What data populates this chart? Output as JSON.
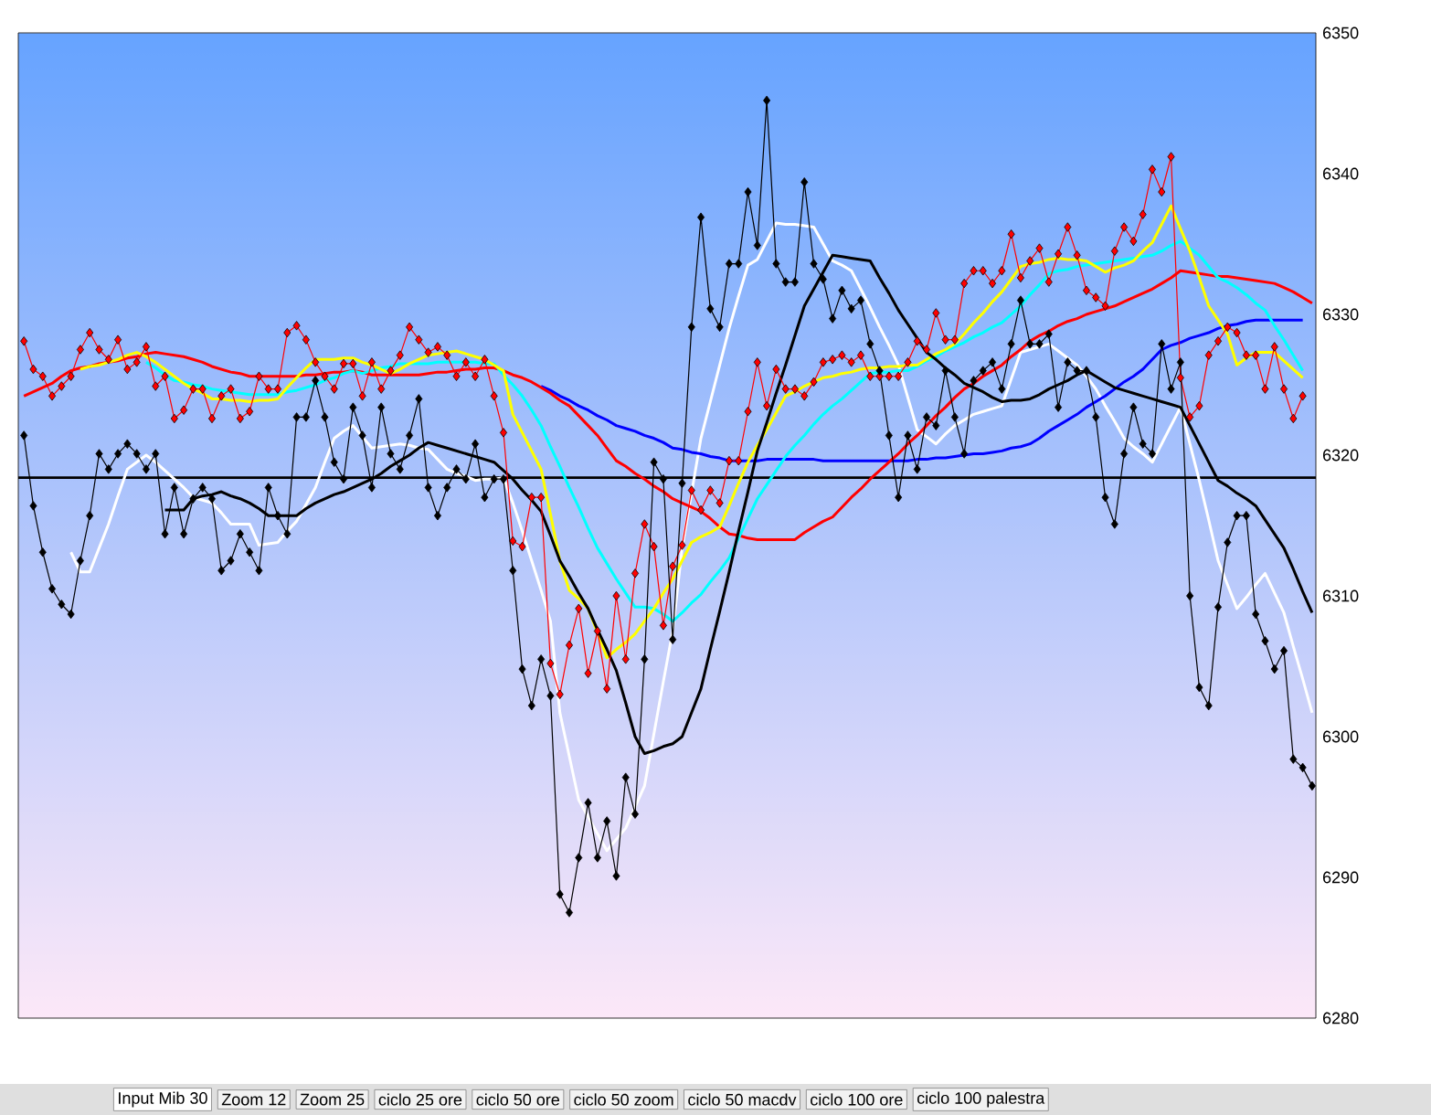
{
  "chart_data": {
    "type": "line",
    "ylim": [
      6280,
      6350
    ],
    "yticks": [
      6280,
      6290,
      6300,
      6310,
      6320,
      6330,
      6340,
      6350
    ],
    "tick_labels": "y",
    "categories": [
      null,
      null,
      null,
      null,
      null,
      null,
      null,
      null,
      null,
      null,
      null,
      null,
      null,
      null,
      null,
      null,
      null,
      null,
      null,
      null,
      null,
      null,
      null,
      null,
      null,
      null,
      null,
      null,
      null,
      null,
      null,
      null,
      null,
      null,
      null,
      null,
      null,
      null,
      null,
      null,
      null,
      null,
      null,
      null,
      null,
      null,
      null,
      null,
      null,
      null,
      null,
      null,
      null,
      null,
      null,
      null,
      null,
      null,
      null,
      null,
      null,
      null,
      null,
      null,
      null,
      null,
      null,
      null,
      null,
      null,
      null,
      null,
      null,
      null,
      null,
      null,
      null,
      null,
      null,
      null,
      null,
      null,
      null,
      null,
      null,
      null,
      null,
      null,
      null,
      null,
      null,
      null,
      null,
      null,
      null,
      null,
      null,
      null,
      null,
      null,
      null,
      null,
      null,
      null,
      null,
      null,
      null,
      null,
      null,
      null,
      null,
      null,
      null,
      null,
      null,
      null,
      null,
      null,
      null,
      null,
      null,
      null,
      null,
      null,
      null,
      null,
      null,
      null,
      null,
      null,
      null,
      null,
      null,
      null,
      null,
      null,
      null,
      null
    ],
    "ref_lines": [
      {
        "axis": "y",
        "value": 6318.4,
        "color": "#000000"
      }
    ],
    "annotations": [
      "Input Mib 30",
      "Zoom 12",
      "Zoom 25",
      "ciclo 25 ore",
      "ciclo 50 ore",
      "ciclo 50 zoom",
      "ciclo 50 macdv",
      "ciclo 100 ore",
      "ciclo 100 palestra"
    ],
    "series": [
      {
        "color": "#ffffff",
        "values": [
          null,
          null,
          null,
          null,
          null,
          6313.1,
          6311.7,
          6311.7,
          6313.4,
          6315.1,
          6317.1,
          6319.0,
          6319.5,
          6320.0,
          6319.5,
          6318.9,
          6318.3,
          6317.7,
          6317.0,
          6316.8,
          6316.6,
          6315.9,
          6315.1,
          6315.1,
          6315.1,
          6313.6,
          6313.7,
          6313.8,
          6314.6,
          6315.3,
          6316.5,
          6317.7,
          6319.5,
          6321.2,
          6321.7,
          6322.1,
          6321.3,
          6320.5,
          6320.6,
          6320.7,
          6320.8,
          6320.7,
          6320.5,
          6320.4,
          6319.7,
          6319.0,
          6318.7,
          6318.5,
          6318.2,
          6318.3,
          6318.3,
          6318.4,
          6316.6,
          6314.6,
          6312.5,
          6310.4,
          6308.2,
          6301.7,
          6298.6,
          6295.5,
          6294.3,
          6293.1,
          6291.9,
          6292.7,
          6293.5,
          6295.0,
          6296.5,
          6300.2,
          6303.9,
          6307.5,
          6313.4,
          6317.3,
          6321.2,
          6323.8,
          6326.4,
          6329.0,
          6331.3,
          6333.5,
          6333.9,
          6335.2,
          6336.5,
          6336.4,
          6336.4,
          6336.3,
          6336.2,
          6335.0,
          6333.8,
          6333.5,
          6333.1,
          6331.8,
          6330.5,
          6329.1,
          6327.8,
          6326.4,
          6324.1,
          6321.8,
          6321.3,
          6320.8,
          6321.5,
          6322.1,
          6322.5,
          6322.9,
          6323.1,
          6323.3,
          6323.5,
          6325.4,
          6327.3,
          6327.5,
          6327.7,
          6327.9,
          6327.4,
          6326.9,
          6326.4,
          6325.6,
          6324.7,
          6323.5,
          6322.4,
          6321.2,
          6320.6,
          6320.1,
          6319.5,
          6320.8,
          6322.1,
          6323.4,
          6320.8,
          6318.2,
          6315.4,
          6312.5,
          6310.8,
          6309.1,
          6309.9,
          6310.8,
          6311.6,
          6310.2,
          6308.8,
          6306.4,
          6304.1,
          6301.7
        ]
      },
      {
        "color": "#0000ff",
        "values": [
          null,
          null,
          null,
          null,
          null,
          null,
          null,
          null,
          null,
          null,
          null,
          null,
          null,
          null,
          null,
          null,
          null,
          null,
          null,
          null,
          null,
          null,
          null,
          null,
          null,
          null,
          null,
          null,
          null,
          null,
          null,
          null,
          null,
          null,
          null,
          null,
          null,
          null,
          null,
          null,
          null,
          null,
          null,
          null,
          null,
          null,
          null,
          null,
          null,
          null,
          null,
          null,
          null,
          null,
          null,
          6324.9,
          6324.6,
          6324.2,
          6323.9,
          6323.5,
          6323.2,
          6322.8,
          6322.5,
          6322.1,
          6321.9,
          6321.7,
          6321.4,
          6321.2,
          6320.9,
          6320.5,
          6320.4,
          6320.2,
          6320.1,
          6319.9,
          6319.8,
          6319.6,
          6319.6,
          6319.6,
          6319.6,
          6319.7,
          6319.7,
          6319.7,
          6319.7,
          6319.7,
          6319.7,
          6319.6,
          6319.6,
          6319.6,
          6319.6,
          6319.6,
          6319.6,
          6319.6,
          6319.6,
          6319.6,
          6319.6,
          6319.7,
          6319.7,
          6319.8,
          6319.8,
          6319.9,
          6320.0,
          6320.1,
          6320.1,
          6320.2,
          6320.3,
          6320.5,
          6320.6,
          6320.8,
          6321.2,
          6321.7,
          6322.1,
          6322.5,
          6322.9,
          6323.4,
          6323.8,
          6324.2,
          6324.7,
          6325.2,
          6325.6,
          6326.1,
          6326.8,
          6327.5,
          6327.8,
          6328.0,
          6328.3,
          6328.5,
          6328.7,
          6329.0,
          6329.2,
          6329.3,
          6329.5,
          6329.6,
          6329.6,
          6329.6,
          6329.6,
          6329.6,
          6329.6,
          null
        ]
      },
      {
        "color": "#ff0000",
        "values": [
          6324.2,
          6324.5,
          6324.8,
          6325.1,
          6325.6,
          6326.0,
          6326.2,
          6326.3,
          6326.5,
          6326.6,
          6326.7,
          6326.9,
          6327.0,
          6327.2,
          6327.3,
          6327.2,
          6327.1,
          6327.0,
          6326.8,
          6326.6,
          6326.3,
          6326.1,
          6325.9,
          6325.8,
          6325.6,
          6325.6,
          6325.6,
          6325.6,
          6325.6,
          6325.6,
          6325.7,
          6325.7,
          6325.8,
          6325.9,
          6325.9,
          6326.0,
          6325.9,
          6325.7,
          6325.7,
          6325.7,
          6325.7,
          6325.7,
          6325.7,
          6325.8,
          6325.9,
          6325.9,
          6326.0,
          6326.1,
          6326.1,
          6326.2,
          6326.2,
          6326.0,
          6325.7,
          6325.5,
          6325.2,
          6324.8,
          6324.4,
          6323.9,
          6323.5,
          6322.8,
          6322.1,
          6321.4,
          6320.5,
          6319.6,
          6319.2,
          6318.7,
          6318.3,
          6317.8,
          6317.4,
          6316.9,
          6316.6,
          6316.3,
          6316.0,
          6315.5,
          6314.9,
          6314.4,
          6314.3,
          6314.1,
          6314.0,
          6314.0,
          6314.0,
          6314.0,
          6314.0,
          6314.5,
          6314.9,
          6315.3,
          6315.6,
          6316.3,
          6317.0,
          6317.6,
          6318.3,
          6318.9,
          6319.5,
          6320.1,
          6320.8,
          6321.4,
          6322.1,
          6322.8,
          6323.4,
          6324.1,
          6324.7,
          6325.1,
          6325.6,
          6326.0,
          6326.4,
          6327.0,
          6327.5,
          6328.1,
          6328.5,
          6328.8,
          6329.2,
          6329.5,
          6329.7,
          6330.0,
          6330.2,
          6330.4,
          6330.6,
          6330.9,
          6331.2,
          6331.5,
          6331.8,
          6332.2,
          6332.6,
          6333.1,
          6333.0,
          6332.9,
          6332.8,
          6332.7,
          6332.7,
          6332.6,
          6332.5,
          6332.4,
          6332.3,
          6332.2,
          6331.9,
          6331.6,
          6331.2,
          6330.8
        ]
      },
      {
        "color": "#00ffff",
        "values": [
          null,
          null,
          null,
          null,
          null,
          null,
          null,
          null,
          null,
          null,
          null,
          null,
          null,
          6326.6,
          6326.2,
          6325.7,
          6325.3,
          6325.2,
          6325.0,
          6324.9,
          6324.7,
          6324.6,
          6324.5,
          6324.4,
          6324.3,
          6324.3,
          6324.3,
          6324.3,
          6324.5,
          6324.6,
          6324.8,
          6325.0,
          6325.3,
          6325.5,
          6325.8,
          6326.0,
          6325.8,
          6326.0,
          6326.2,
          6326.3,
          6326.5,
          6326.5,
          6326.5,
          6326.5,
          6326.6,
          6326.6,
          6326.6,
          6326.6,
          6326.6,
          6326.5,
          6326.5,
          6325.7,
          6325.0,
          6324.2,
          6323.2,
          6322.1,
          6320.6,
          6319.2,
          6317.7,
          6316.3,
          6314.8,
          6313.4,
          6312.3,
          6311.2,
          6310.2,
          6309.2,
          6309.2,
          6309.1,
          6308.7,
          6308.2,
          6308.8,
          6309.5,
          6310.1,
          6311.0,
          6311.8,
          6312.7,
          6314.1,
          6315.5,
          6316.9,
          6317.9,
          6318.9,
          6319.9,
          6320.7,
          6321.4,
          6322.2,
          6322.9,
          6323.5,
          6324.0,
          6324.6,
          6325.2,
          6325.8,
          6325.9,
          6325.9,
          6326.0,
          6326.0,
          6326.3,
          6326.7,
          6327.0,
          6327.4,
          6327.7,
          6328.0,
          6328.4,
          6328.7,
          6329.1,
          6329.4,
          6330.0,
          6330.6,
          6331.4,
          6332.1,
          6332.9,
          6333.1,
          6333.2,
          6333.4,
          6333.5,
          6333.6,
          6333.7,
          6333.8,
          6333.9,
          6334.0,
          6334.1,
          6334.2,
          6334.5,
          6334.9,
          6335.2,
          6334.7,
          6334.2,
          6333.4,
          6332.6,
          6332.3,
          6331.9,
          6331.4,
          6330.8,
          6330.3,
          6329.2,
          6328.2,
          6327.1,
          6326.0,
          null
        ]
      },
      {
        "color": "#ffff00",
        "values": [
          null,
          null,
          null,
          null,
          null,
          null,
          6326.1,
          6326.3,
          6326.4,
          6326.6,
          6326.8,
          6327.1,
          6327.3,
          6327.0,
          6326.6,
          6326.1,
          6325.6,
          6325.1,
          6324.7,
          6324.4,
          6324.0,
          6324.0,
          6323.9,
          6323.9,
          6323.8,
          6323.9,
          6323.9,
          6324.0,
          6324.8,
          6325.5,
          6326.2,
          6326.8,
          6326.8,
          6326.8,
          6326.9,
          6326.9,
          6326.6,
          6326.4,
          6326.1,
          6325.8,
          6326.1,
          6326.5,
          6326.8,
          6327.1,
          6327.2,
          6327.3,
          6327.4,
          6327.2,
          6327.0,
          6326.8,
          6326.4,
          6326.0,
          6322.9,
          6321.6,
          6320.3,
          6319.0,
          6315.8,
          6312.5,
          6310.4,
          6309.8,
          6309.1,
          6307.4,
          6305.6,
          6306.2,
          6306.7,
          6307.3,
          6308.2,
          6309.1,
          6310.2,
          6311.2,
          6312.5,
          6313.8,
          6314.2,
          6314.5,
          6314.9,
          6316.4,
          6318.0,
          6319.5,
          6320.7,
          6321.8,
          6323.0,
          6324.2,
          6324.5,
          6324.9,
          6325.2,
          6325.5,
          6325.6,
          6325.8,
          6325.9,
          6326.1,
          6326.2,
          6326.2,
          6326.3,
          6326.3,
          6326.4,
          6326.4,
          6326.8,
          6327.2,
          6327.5,
          6327.9,
          6328.6,
          6329.4,
          6330.1,
          6330.9,
          6331.6,
          6332.5,
          6333.4,
          6333.6,
          6333.7,
          6333.9,
          6334.0,
          6333.9,
          6333.9,
          6333.8,
          6333.4,
          6333.0,
          6333.3,
          6333.5,
          6333.8,
          6334.5,
          6335.1,
          6336.4,
          6337.7,
          6336.1,
          6334.5,
          6332.6,
          6330.6,
          6329.6,
          6328.6,
          6326.4,
          6326.9,
          6327.3,
          6327.3,
          6327.3,
          6326.7,
          6326.1,
          6325.5,
          null
        ]
      },
      {
        "color": "#000000",
        "values": [
          null,
          null,
          null,
          null,
          null,
          null,
          null,
          null,
          null,
          null,
          null,
          null,
          null,
          null,
          null,
          6316.1,
          6316.1,
          6316.1,
          6316.9,
          6317.1,
          6317.2,
          6317.4,
          6317.1,
          6316.9,
          6316.6,
          6316.2,
          6315.7,
          6315.7,
          6315.7,
          6315.7,
          6316.2,
          6316.6,
          6316.9,
          6317.2,
          6317.4,
          6317.7,
          6318.0,
          6318.3,
          6318.7,
          6319.2,
          6319.6,
          6320.0,
          6320.5,
          6320.9,
          6320.7,
          6320.5,
          6320.3,
          6320.1,
          6319.9,
          6319.7,
          6319.5,
          6318.9,
          6318.3,
          6317.5,
          6316.8,
          6316.0,
          6314.3,
          6312.5,
          6311.4,
          6310.2,
          6309.1,
          6307.6,
          6306.2,
          6304.7,
          6302.4,
          6300.0,
          6298.8,
          6299.0,
          6299.3,
          6299.5,
          6300.0,
          6301.7,
          6303.4,
          6306.2,
          6308.9,
          6311.7,
          6314.6,
          6317.4,
          6320.3,
          6322.3,
          6324.4,
          6326.4,
          6328.5,
          6330.6,
          6331.8,
          6333.0,
          6334.2,
          6334.1,
          6334.0,
          6333.9,
          6333.8,
          6332.6,
          6331.5,
          6330.3,
          6329.3,
          6328.3,
          6327.3,
          6326.8,
          6326.2,
          6325.7,
          6325.1,
          6324.8,
          6324.5,
          6324.1,
          6323.8,
          6323.9,
          6323.9,
          6324.0,
          6324.3,
          6324.7,
          6325.0,
          6325.3,
          6325.7,
          6326.0,
          6325.6,
          6325.2,
          6324.8,
          6324.6,
          6324.4,
          6324.2,
          6324.0,
          6323.8,
          6323.6,
          6323.4,
          6322.1,
          6320.8,
          6319.5,
          6318.2,
          6317.8,
          6317.3,
          6316.9,
          6316.4,
          6315.4,
          6314.4,
          6313.4,
          6311.9,
          6310.3,
          6308.8
        ]
      },
      {
        "color": "#ff0000",
        "marker": "diamond",
        "values": [
          6328.1,
          6326.1,
          6325.6,
          6324.2,
          6324.9,
          6325.6,
          6327.5,
          6328.7,
          6327.5,
          6326.8,
          6328.2,
          6326.1,
          6326.6,
          6327.7,
          6324.9,
          6325.6,
          6322.6,
          6323.2,
          6324.7,
          6324.7,
          6322.6,
          6324.2,
          6324.7,
          6322.6,
          6323.1,
          6325.6,
          6324.7,
          6324.7,
          6328.7,
          6329.2,
          6328.2,
          6326.6,
          6325.6,
          6324.7,
          6326.5,
          6326.5,
          6324.2,
          6326.6,
          6324.7,
          6326.0,
          6327.1,
          6329.1,
          6328.2,
          6327.3,
          6327.7,
          6327.1,
          6325.6,
          6326.6,
          6325.6,
          6326.8,
          6324.2,
          6321.6,
          6313.9,
          6313.5,
          6317.0,
          6317.0,
          6305.2,
          6303.0,
          6306.5,
          6309.1,
          6304.5,
          6307.5,
          6303.4,
          6310.0,
          6305.5,
          6311.6,
          6315.1,
          6313.5,
          6307.9,
          6312.1,
          6313.6,
          6317.5,
          6316.1,
          6317.5,
          6316.6,
          6319.6,
          6319.6,
          6323.1,
          6326.6,
          6323.5,
          6326.1,
          6324.7,
          6324.7,
          6324.2,
          6325.2,
          6326.6,
          6326.8,
          6327.1,
          6326.6,
          6327.1,
          6325.6,
          6325.6,
          6325.6,
          6325.6,
          6326.6,
          6328.1,
          6327.5,
          6330.1,
          6328.2,
          6328.2,
          6332.2,
          6333.1,
          6333.1,
          6332.2,
          6333.1,
          6335.7,
          6332.6,
          6333.8,
          6334.7,
          6332.3,
          6334.3,
          6336.2,
          6334.2,
          6331.7,
          6331.2,
          6330.6,
          6334.5,
          6336.2,
          6335.2,
          6337.1,
          6340.3,
          6338.7,
          6341.2,
          6325.5,
          6322.7,
          6323.5,
          6327.1,
          6328.1,
          6329.1,
          6328.7,
          6327.1,
          6327.1,
          6324.7,
          6327.7,
          6324.7,
          6322.6,
          6324.2,
          null
        ]
      },
      {
        "color": "#000000",
        "marker": "diamond",
        "values": [
          6321.4,
          6316.4,
          6313.1,
          6310.5,
          6309.4,
          6308.7,
          6312.5,
          6315.7,
          6320.1,
          6319.0,
          6320.1,
          6320.8,
          6320.1,
          6319.0,
          6320.1,
          6314.4,
          6317.7,
          6314.4,
          6316.9,
          6317.7,
          6316.9,
          6311.8,
          6312.5,
          6314.4,
          6313.1,
          6311.8,
          6317.7,
          6315.7,
          6314.4,
          6322.7,
          6322.7,
          6325.3,
          6322.7,
          6319.5,
          6318.3,
          6323.4,
          6321.4,
          6317.7,
          6323.4,
          6320.1,
          6319.0,
          6321.4,
          6324.0,
          6317.7,
          6315.7,
          6317.7,
          6319.0,
          6318.3,
          6320.8,
          6317.0,
          6318.3,
          6318.3,
          6311.8,
          6304.8,
          6302.2,
          6305.5,
          6302.9,
          6288.8,
          6287.5,
          6291.4,
          6295.3,
          6291.4,
          6294.0,
          6290.1,
          6297.1,
          6294.5,
          6305.5,
          6319.5,
          6318.3,
          6306.9,
          6318.0,
          6329.1,
          6336.9,
          6330.4,
          6329.1,
          6333.6,
          6333.6,
          6338.7,
          6334.9,
          6345.2,
          6333.6,
          6332.3,
          6332.3,
          6339.4,
          6333.6,
          6332.5,
          6329.7,
          6331.7,
          6330.4,
          6331.0,
          6327.9,
          6326.0,
          6321.4,
          6317.0,
          6321.4,
          6319.0,
          6322.7,
          6322.1,
          6326.0,
          6322.7,
          6320.1,
          6325.3,
          6326.0,
          6326.6,
          6324.7,
          6327.9,
          6331.0,
          6327.9,
          6327.9,
          6328.6,
          6323.4,
          6326.6,
          6326.0,
          6326.0,
          6322.7,
          6317.0,
          6315.1,
          6320.1,
          6323.4,
          6320.8,
          6320.1,
          6327.9,
          6324.7,
          6326.6,
          6310.0,
          6303.5,
          6302.2,
          6309.2,
          6313.8,
          6315.7,
          6315.7,
          6308.7,
          6306.8,
          6304.8,
          6306.1,
          6298.4,
          6297.8,
          6296.5
        ]
      }
    ]
  }
}
